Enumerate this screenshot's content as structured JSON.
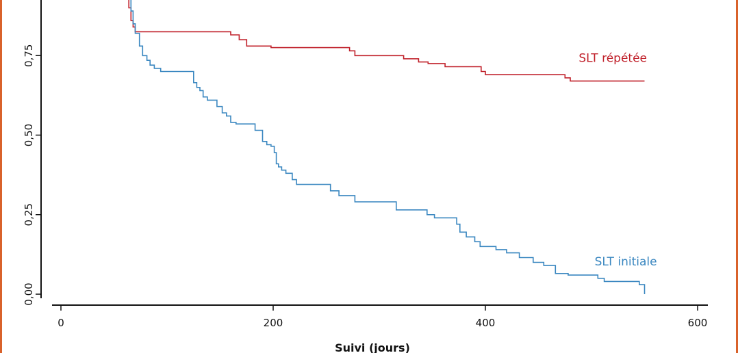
{
  "colors": {
    "frame": "#d9622b",
    "axis": "#111111"
  },
  "chart_data": {
    "type": "line",
    "step": true,
    "xlabel": "Suivi (jours)",
    "ylabel": "",
    "xlim": [
      0,
      600
    ],
    "ylim": [
      0,
      1
    ],
    "xticks": [
      0,
      200,
      400,
      600
    ],
    "xtick_labels": [
      "0",
      "200",
      "400",
      "600"
    ],
    "yticks": [
      0,
      0.25,
      0.5,
      0.75
    ],
    "ytick_labels": [
      "0,00",
      "0,25",
      "0,50",
      "0,75"
    ],
    "grid": false,
    "legend": "inline labels at line ends",
    "series": [
      {
        "name": "SLT répétée",
        "color": "#c0202a",
        "label_anchor": [
          488,
          0.73
        ],
        "points": [
          [
            62,
            1.0
          ],
          [
            63,
            0.95
          ],
          [
            64,
            0.9
          ],
          [
            66,
            0.86
          ],
          [
            68,
            0.84
          ],
          [
            70,
            0.825
          ],
          [
            155,
            0.825
          ],
          [
            160,
            0.815
          ],
          [
            168,
            0.8
          ],
          [
            175,
            0.78
          ],
          [
            198,
            0.775
          ],
          [
            262,
            0.775
          ],
          [
            272,
            0.765
          ],
          [
            277,
            0.75
          ],
          [
            314,
            0.75
          ],
          [
            323,
            0.74
          ],
          [
            337,
            0.73
          ],
          [
            346,
            0.725
          ],
          [
            362,
            0.715
          ],
          [
            395,
            0.715
          ],
          [
            396,
            0.7
          ],
          [
            400,
            0.69
          ],
          [
            457,
            0.69
          ],
          [
            475,
            0.68
          ],
          [
            480,
            0.67
          ],
          [
            550,
            0.67
          ]
        ]
      },
      {
        "name": "SLT initiale",
        "color": "#3a87c0",
        "label_anchor": [
          503,
          0.09
        ],
        "points": [
          [
            62,
            1.0
          ],
          [
            64,
            0.96
          ],
          [
            66,
            0.89
          ],
          [
            68,
            0.85
          ],
          [
            70,
            0.82
          ],
          [
            74,
            0.78
          ],
          [
            77,
            0.75
          ],
          [
            81,
            0.735
          ],
          [
            84,
            0.72
          ],
          [
            88,
            0.71
          ],
          [
            94,
            0.7
          ],
          [
            120,
            0.7
          ],
          [
            125,
            0.665
          ],
          [
            128,
            0.65
          ],
          [
            131,
            0.64
          ],
          [
            134,
            0.62
          ],
          [
            138,
            0.61
          ],
          [
            147,
            0.59
          ],
          [
            152,
            0.57
          ],
          [
            156,
            0.56
          ],
          [
            160,
            0.54
          ],
          [
            165,
            0.535
          ],
          [
            178,
            0.535
          ],
          [
            183,
            0.515
          ],
          [
            190,
            0.48
          ],
          [
            194,
            0.47
          ],
          [
            198,
            0.465
          ],
          [
            201,
            0.445
          ],
          [
            203,
            0.41
          ],
          [
            205,
            0.4
          ],
          [
            208,
            0.39
          ],
          [
            212,
            0.38
          ],
          [
            218,
            0.36
          ],
          [
            222,
            0.345
          ],
          [
            248,
            0.345
          ],
          [
            254,
            0.325
          ],
          [
            262,
            0.31
          ],
          [
            277,
            0.29
          ],
          [
            308,
            0.29
          ],
          [
            316,
            0.265
          ],
          [
            332,
            0.265
          ],
          [
            345,
            0.25
          ],
          [
            352,
            0.24
          ],
          [
            370,
            0.24
          ],
          [
            373,
            0.22
          ],
          [
            376,
            0.195
          ],
          [
            382,
            0.18
          ],
          [
            390,
            0.165
          ],
          [
            395,
            0.15
          ],
          [
            410,
            0.14
          ],
          [
            420,
            0.13
          ],
          [
            432,
            0.115
          ],
          [
            445,
            0.1
          ],
          [
            455,
            0.09
          ],
          [
            466,
            0.065
          ],
          [
            478,
            0.06
          ],
          [
            496,
            0.06
          ],
          [
            506,
            0.05
          ],
          [
            512,
            0.04
          ],
          [
            540,
            0.04
          ],
          [
            545,
            0.03
          ],
          [
            550,
            0.0
          ]
        ]
      }
    ]
  }
}
